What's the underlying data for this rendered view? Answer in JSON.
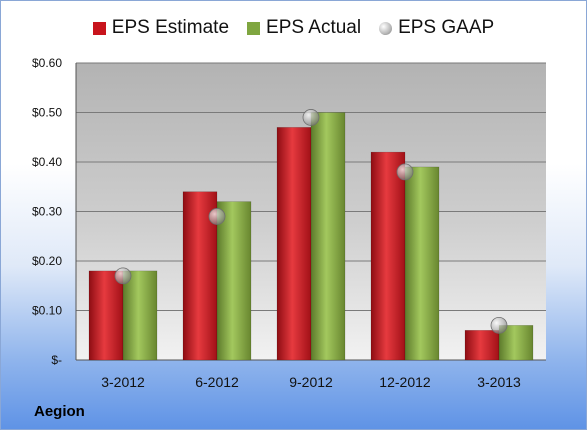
{
  "company": "Aegion",
  "colors": {
    "estimate": "#c8141c",
    "actual": "#7fa640",
    "gaap": "#b8b8b8"
  },
  "chart_data": {
    "type": "bar",
    "categories": [
      "3-2012",
      "6-2012",
      "9-2012",
      "12-2012",
      "3-2013"
    ],
    "series": [
      {
        "name": "EPS Estimate",
        "type": "bar",
        "values": [
          0.18,
          0.34,
          0.47,
          0.42,
          0.06
        ]
      },
      {
        "name": "EPS Actual",
        "type": "bar",
        "values": [
          0.18,
          0.32,
          0.5,
          0.39,
          0.07
        ]
      },
      {
        "name": "EPS GAAP",
        "type": "scatter",
        "values": [
          0.17,
          0.29,
          0.49,
          0.38,
          0.07
        ]
      }
    ],
    "y_ticks": [
      {
        "value": 0,
        "label": "$-"
      },
      {
        "value": 0.1,
        "label": "$0.10"
      },
      {
        "value": 0.2,
        "label": "$0.20"
      },
      {
        "value": 0.3,
        "label": "$0.30"
      },
      {
        "value": 0.4,
        "label": "$0.40"
      },
      {
        "value": 0.5,
        "label": "$0.50"
      },
      {
        "value": 0.6,
        "label": "$0.60"
      }
    ],
    "ylim": [
      0,
      0.6
    ],
    "grid": true,
    "legend_position": "top-center"
  }
}
